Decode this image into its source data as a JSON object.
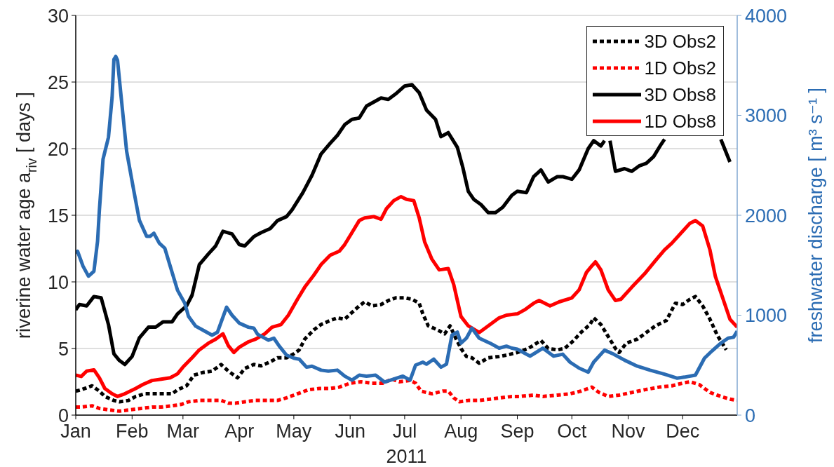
{
  "chart_data": {
    "type": "line",
    "xlabel": "2011",
    "ylabel": "riverine water age a$_{riv}$ [ days ]",
    "y2label": "freshwater discharge [ m³ s⁻¹ ]",
    "xlim": [
      "2011-01-01",
      "2011-12-31"
    ],
    "xticks": [
      {
        "value": "2011-01-01",
        "label": "Jan"
      },
      {
        "value": "2011-02-01",
        "label": "Feb"
      },
      {
        "value": "2011-03-01",
        "label": "Mar"
      },
      {
        "value": "2011-04-01",
        "label": "Apr"
      },
      {
        "value": "2011-05-01",
        "label": "May"
      },
      {
        "value": "2011-06-01",
        "label": "Jun"
      },
      {
        "value": "2011-07-01",
        "label": "Jul"
      },
      {
        "value": "2011-08-01",
        "label": "Aug"
      },
      {
        "value": "2011-09-01",
        "label": "Sep"
      },
      {
        "value": "2011-10-01",
        "label": "Oct"
      },
      {
        "value": "2011-11-01",
        "label": "Nov"
      },
      {
        "value": "2011-12-01",
        "label": "Dec"
      }
    ],
    "ylim": [
      0,
      30
    ],
    "yticks": [
      0,
      5,
      10,
      15,
      20,
      25,
      30
    ],
    "y2lim": [
      0,
      4000
    ],
    "y2ticks": [
      0,
      1000,
      2000,
      3000,
      4000
    ],
    "grid": "y",
    "legend": "top right",
    "series": [
      {
        "name": "3D Obs2",
        "color": "#000000",
        "line_style": "dotted",
        "x": [
          "2011-01-01",
          "2011-01-04",
          "2011-01-10",
          "2011-01-14",
          "2011-01-17",
          "2011-01-22",
          "2011-01-25",
          "2011-01-30",
          "2011-02-03",
          "2011-02-08",
          "2011-02-13",
          "2011-02-18",
          "2011-02-23",
          "2011-02-26",
          "2011-03-03",
          "2011-03-07",
          "2011-03-12",
          "2011-03-17",
          "2011-03-22",
          "2011-03-26",
          "2011-03-31",
          "2011-04-04",
          "2011-04-09",
          "2011-04-13",
          "2011-04-18",
          "2011-04-22",
          "2011-04-27",
          "2011-05-01",
          "2011-05-04",
          "2011-05-07",
          "2011-05-12",
          "2011-05-16",
          "2011-05-21",
          "2011-05-25",
          "2011-05-29",
          "2011-06-02",
          "2011-06-06",
          "2011-06-09",
          "2011-06-13",
          "2011-06-18",
          "2011-06-22",
          "2011-06-26",
          "2011-07-01",
          "2011-07-05",
          "2011-07-09",
          "2011-07-11",
          "2011-07-14",
          "2011-07-19",
          "2011-07-23",
          "2011-07-26",
          "2011-07-29",
          "2011-08-01",
          "2011-08-04",
          "2011-08-07",
          "2011-08-11",
          "2011-08-16",
          "2011-08-22",
          "2011-08-26",
          "2011-09-01",
          "2011-09-07",
          "2011-09-14",
          "2011-09-18",
          "2011-09-23",
          "2011-09-27",
          "2011-10-02",
          "2011-10-06",
          "2011-10-11",
          "2011-10-13",
          "2011-10-17",
          "2011-10-21",
          "2011-10-25",
          "2011-10-27",
          "2011-10-31",
          "2011-11-06",
          "2011-11-10",
          "2011-11-16",
          "2011-11-22",
          "2011-11-27",
          "2011-12-01",
          "2011-12-05",
          "2011-12-08",
          "2011-12-12",
          "2011-12-16",
          "2011-12-20",
          "2011-12-25"
        ],
        "values": [
          1.8,
          1.9,
          2.2,
          1.8,
          1.4,
          1.1,
          1.0,
          1.1,
          1.4,
          1.6,
          1.6,
          1.6,
          1.6,
          1.9,
          2.2,
          3.0,
          3.2,
          3.3,
          3.8,
          3.3,
          2.8,
          3.5,
          3.8,
          3.7,
          4.0,
          4.3,
          4.3,
          4.6,
          4.9,
          5.7,
          6.4,
          6.8,
          7.1,
          7.3,
          7.2,
          7.7,
          8.2,
          8.5,
          8.2,
          8.3,
          8.6,
          8.8,
          8.8,
          8.7,
          8.4,
          7.6,
          6.7,
          6.4,
          6.1,
          6.7,
          5.8,
          5.0,
          4.4,
          4.3,
          3.9,
          4.3,
          4.4,
          4.5,
          4.7,
          5.0,
          5.6,
          5.0,
          4.9,
          5.0,
          5.6,
          6.2,
          6.8,
          7.3,
          6.8,
          5.9,
          5.0,
          4.7,
          5.4,
          5.7,
          6.1,
          6.7,
          7.1,
          8.4,
          8.3,
          8.7,
          8.9,
          8.2,
          7.2,
          6.0,
          4.9
        ]
      },
      {
        "name": "1D Obs2",
        "color": "#ff0000",
        "line_style": "dotted",
        "x": [
          "2011-01-01",
          "2011-01-04",
          "2011-01-10",
          "2011-01-14",
          "2011-01-19",
          "2011-01-25",
          "2011-01-31",
          "2011-02-06",
          "2011-02-12",
          "2011-02-17",
          "2011-02-23",
          "2011-02-28",
          "2011-03-04",
          "2011-03-10",
          "2011-03-16",
          "2011-03-22",
          "2011-03-26",
          "2011-03-30",
          "2011-04-04",
          "2011-04-10",
          "2011-04-16",
          "2011-04-22",
          "2011-04-27",
          "2011-05-01",
          "2011-05-03",
          "2011-05-09",
          "2011-05-15",
          "2011-05-21",
          "2011-05-26",
          "2011-06-01",
          "2011-06-07",
          "2011-06-13",
          "2011-06-19",
          "2011-06-24",
          "2011-06-28",
          "2011-07-04",
          "2011-07-07",
          "2011-07-10",
          "2011-07-16",
          "2011-07-22",
          "2011-07-25",
          "2011-07-28",
          "2011-07-31",
          "2011-08-05",
          "2011-08-11",
          "2011-08-17",
          "2011-08-23",
          "2011-08-29",
          "2011-09-02",
          "2011-09-10",
          "2011-09-15",
          "2011-09-23",
          "2011-09-30",
          "2011-10-06",
          "2011-10-12",
          "2011-10-16",
          "2011-10-21",
          "2011-10-27",
          "2011-11-03",
          "2011-11-10",
          "2011-11-18",
          "2011-11-25",
          "2011-12-01",
          "2011-12-05",
          "2011-12-10",
          "2011-12-16",
          "2011-12-22",
          "2011-12-27",
          "2011-12-31"
        ],
        "values": [
          0.6,
          0.6,
          0.7,
          0.5,
          0.4,
          0.3,
          0.4,
          0.5,
          0.6,
          0.6,
          0.7,
          0.8,
          1.0,
          1.1,
          1.1,
          1.1,
          0.9,
          0.9,
          1.0,
          1.1,
          1.1,
          1.1,
          1.3,
          1.5,
          1.6,
          1.9,
          2.0,
          2.0,
          2.1,
          2.4,
          2.5,
          2.4,
          2.4,
          2.7,
          2.5,
          2.6,
          2.4,
          1.8,
          1.6,
          1.8,
          1.8,
          1.3,
          1.0,
          1.1,
          1.1,
          1.2,
          1.3,
          1.4,
          1.4,
          1.5,
          1.4,
          1.5,
          1.6,
          1.8,
          2.1,
          1.7,
          1.4,
          1.5,
          1.7,
          1.9,
          2.1,
          2.2,
          2.4,
          2.5,
          2.3,
          1.7,
          1.4,
          1.2,
          1.1
        ]
      },
      {
        "name": "3D Obs8",
        "color": "#000000",
        "line_style": "solid",
        "x": [
          "2011-01-01",
          "2011-01-03",
          "2011-01-07",
          "2011-01-11",
          "2011-01-15",
          "2011-01-19",
          "2011-01-22",
          "2011-01-25",
          "2011-01-28",
          "2011-02-01",
          "2011-02-05",
          "2011-02-10",
          "2011-02-14",
          "2011-02-18",
          "2011-02-23",
          "2011-02-26",
          "2011-03-03",
          "2011-03-06",
          "2011-03-10",
          "2011-03-15",
          "2011-03-19",
          "2011-03-23",
          "2011-03-28",
          "2011-04-01",
          "2011-04-04",
          "2011-04-09",
          "2011-04-13",
          "2011-04-18",
          "2011-04-22",
          "2011-04-27",
          "2011-04-30",
          "2011-05-06",
          "2011-05-11",
          "2011-05-16",
          "2011-05-21",
          "2011-05-25",
          "2011-05-29",
          "2011-06-02",
          "2011-06-06",
          "2011-06-10",
          "2011-06-14",
          "2011-06-18",
          "2011-06-22",
          "2011-06-26",
          "2011-07-01",
          "2011-07-05",
          "2011-07-09",
          "2011-07-13",
          "2011-07-18",
          "2011-07-21",
          "2011-07-25",
          "2011-07-30",
          "2011-08-02",
          "2011-08-05",
          "2011-08-08",
          "2011-08-12",
          "2011-08-16",
          "2011-08-20",
          "2011-08-24",
          "2011-08-29",
          "2011-09-01",
          "2011-09-06",
          "2011-09-10",
          "2011-09-14",
          "2011-09-18",
          "2011-09-23",
          "2011-09-26",
          "2011-10-01",
          "2011-10-05",
          "2011-10-10",
          "2011-10-13",
          "2011-10-17",
          "2011-10-19",
          "2011-10-20",
          "2011-10-22",
          "2011-10-25",
          "2011-10-30",
          "2011-11-03",
          "2011-11-07",
          "2011-11-11",
          "2011-11-15",
          "2011-11-19",
          "2011-11-21",
          "2011-12-07",
          "2011-12-22",
          "2011-12-27"
        ],
        "values": [
          7.9,
          8.3,
          8.2,
          8.9,
          8.8,
          6.8,
          4.6,
          4.1,
          3.8,
          4.4,
          5.8,
          6.6,
          6.6,
          7.0,
          7.0,
          7.6,
          8.2,
          9.0,
          11.3,
          12.1,
          12.7,
          13.8,
          13.6,
          12.8,
          12.7,
          13.4,
          13.7,
          14.0,
          14.6,
          14.9,
          15.4,
          16.7,
          18.0,
          19.6,
          20.4,
          21.0,
          21.8,
          22.2,
          22.3,
          23.2,
          23.5,
          23.8,
          23.7,
          24.1,
          24.7,
          24.8,
          24.2,
          22.9,
          22.2,
          20.9,
          21.2,
          20.1,
          18.6,
          16.8,
          16.2,
          15.8,
          15.2,
          15.2,
          15.6,
          16.5,
          16.8,
          16.7,
          17.9,
          18.4,
          17.5,
          17.9,
          17.9,
          17.7,
          18.4,
          20.0,
          20.6,
          20.2,
          20.6,
          null,
          20.6,
          18.3,
          18.5,
          18.3,
          18.7,
          18.9,
          19.4,
          20.3,
          20.7,
          null,
          20.7,
          19.0
        ]
      },
      {
        "name": "1D Obs8",
        "color": "#ff0000",
        "line_style": "solid",
        "x": [
          "2011-01-01",
          "2011-01-04",
          "2011-01-07",
          "2011-01-11",
          "2011-01-14",
          "2011-01-17",
          "2011-01-21",
          "2011-01-24",
          "2011-01-28",
          "2011-02-03",
          "2011-02-07",
          "2011-02-12",
          "2011-02-17",
          "2011-02-22",
          "2011-02-26",
          "2011-03-01",
          "2011-03-06",
          "2011-03-10",
          "2011-03-15",
          "2011-03-19",
          "2011-03-23",
          "2011-03-26",
          "2011-03-29",
          "2011-04-01",
          "2011-04-06",
          "2011-04-10",
          "2011-04-15",
          "2011-04-19",
          "2011-04-24",
          "2011-04-28",
          "2011-05-03",
          "2011-05-07",
          "2011-05-12",
          "2011-05-16",
          "2011-05-21",
          "2011-05-26",
          "2011-05-29",
          "2011-06-02",
          "2011-06-06",
          "2011-06-09",
          "2011-06-14",
          "2011-06-18",
          "2011-06-21",
          "2011-06-25",
          "2011-06-29",
          "2011-07-02",
          "2011-07-06",
          "2011-07-09",
          "2011-07-12",
          "2011-07-16",
          "2011-07-20",
          "2011-07-25",
          "2011-07-28",
          "2011-08-01",
          "2011-08-05",
          "2011-08-11",
          "2011-08-16",
          "2011-08-22",
          "2011-08-26",
          "2011-09-01",
          "2011-09-05",
          "2011-09-10",
          "2011-09-13",
          "2011-09-19",
          "2011-09-24",
          "2011-10-01",
          "2011-10-05",
          "2011-10-09",
          "2011-10-12",
          "2011-10-14",
          "2011-10-17",
          "2011-10-21",
          "2011-10-25",
          "2011-10-28",
          "2011-11-03",
          "2011-11-10",
          "2011-11-16",
          "2011-11-21",
          "2011-11-25",
          "2011-12-01",
          "2011-12-05",
          "2011-12-08",
          "2011-12-12",
          "2011-12-16",
          "2011-12-19",
          "2011-12-23",
          "2011-12-27",
          "2011-12-31"
        ],
        "values": [
          3.0,
          2.9,
          3.3,
          3.4,
          2.8,
          2.0,
          1.6,
          1.4,
          1.6,
          2.0,
          2.3,
          2.6,
          2.7,
          2.8,
          3.1,
          3.6,
          4.3,
          4.9,
          5.4,
          5.7,
          6.1,
          5.2,
          4.7,
          5.1,
          5.5,
          5.7,
          6.1,
          6.6,
          6.8,
          7.5,
          8.7,
          9.6,
          10.5,
          11.3,
          12.0,
          12.3,
          12.8,
          13.7,
          14.6,
          14.8,
          14.9,
          14.7,
          15.5,
          16.1,
          16.4,
          16.2,
          16.1,
          14.8,
          13.0,
          11.7,
          10.9,
          11.0,
          9.8,
          7.4,
          6.7,
          6.2,
          6.7,
          7.3,
          7.5,
          7.6,
          7.9,
          8.4,
          8.6,
          8.2,
          8.5,
          8.8,
          9.4,
          10.7,
          11.2,
          11.5,
          10.9,
          9.4,
          8.6,
          8.7,
          9.6,
          10.6,
          11.6,
          12.4,
          12.9,
          13.8,
          14.4,
          14.6,
          14.2,
          12.4,
          10.4,
          8.8,
          7.2,
          6.6
        ]
      },
      {
        "color": "#2b6cb3",
        "line_style": "solid",
        "axis": "y2",
        "x": [
          "2011-01-01",
          "2011-01-02",
          "2011-01-05",
          "2011-01-08",
          "2011-01-11",
          "2011-01-13",
          "2011-01-14",
          "2011-01-16",
          "2011-01-19",
          "2011-01-21",
          "2011-01-22",
          "2011-01-23",
          "2011-01-24",
          "2011-01-26",
          "2011-01-29",
          "2011-02-02",
          "2011-02-05",
          "2011-02-09",
          "2011-02-11",
          "2011-02-13",
          "2011-02-16",
          "2011-02-19",
          "2011-02-22",
          "2011-02-26",
          "2011-03-02",
          "2011-03-04",
          "2011-03-08",
          "2011-03-13",
          "2011-03-17",
          "2011-03-20",
          "2011-03-22",
          "2011-03-25",
          "2011-03-28",
          "2011-04-01",
          "2011-04-06",
          "2011-04-09",
          "2011-04-11",
          "2011-04-17",
          "2011-04-20",
          "2011-04-23",
          "2011-04-27",
          "2011-05-01",
          "2011-05-04",
          "2011-05-08",
          "2011-05-11",
          "2011-05-16",
          "2011-05-20",
          "2011-05-25",
          "2011-05-29",
          "2011-06-02",
          "2011-06-06",
          "2011-06-10",
          "2011-06-15",
          "2011-06-20",
          "2011-06-25",
          "2011-06-30",
          "2011-07-04",
          "2011-07-07",
          "2011-07-11",
          "2011-07-13",
          "2011-07-17",
          "2011-07-21",
          "2011-07-24",
          "2011-07-27",
          "2011-07-30",
          "2011-08-01",
          "2011-08-04",
          "2011-08-07",
          "2011-08-11",
          "2011-08-17",
          "2011-08-22",
          "2011-08-26",
          "2011-08-29",
          "2011-09-01",
          "2011-09-08",
          "2011-09-15",
          "2011-09-21",
          "2011-09-26",
          "2011-09-30",
          "2011-10-05",
          "2011-10-10",
          "2011-10-13",
          "2011-10-19",
          "2011-10-24",
          "2011-10-30",
          "2011-11-06",
          "2011-11-13",
          "2011-11-21",
          "2011-11-28",
          "2011-12-02",
          "2011-12-08",
          "2011-12-13",
          "2011-12-17",
          "2011-12-22",
          "2011-12-26",
          "2011-12-29",
          "2011-12-31"
        ],
        "values": [
          1620,
          1640,
          1490,
          1390,
          1440,
          1740,
          2050,
          2560,
          2780,
          3180,
          3560,
          3590,
          3550,
          3180,
          2640,
          2240,
          1950,
          1790,
          1790,
          1820,
          1720,
          1670,
          1490,
          1250,
          1120,
          990,
          890,
          840,
          800,
          830,
          930,
          1080,
          1000,
          920,
          880,
          870,
          810,
          750,
          770,
          690,
          600,
          570,
          560,
          480,
          490,
          450,
          440,
          450,
          390,
          350,
          400,
          390,
          400,
          330,
          360,
          390,
          350,
          500,
          530,
          510,
          560,
          480,
          510,
          800,
          830,
          720,
          770,
          870,
          770,
          720,
          670,
          690,
          670,
          660,
          590,
          670,
          590,
          610,
          530,
          470,
          430,
          530,
          650,
          610,
          550,
          490,
          450,
          410,
          370,
          380,
          400,
          570,
          640,
          720,
          770,
          780,
          840
        ]
      }
    ]
  }
}
